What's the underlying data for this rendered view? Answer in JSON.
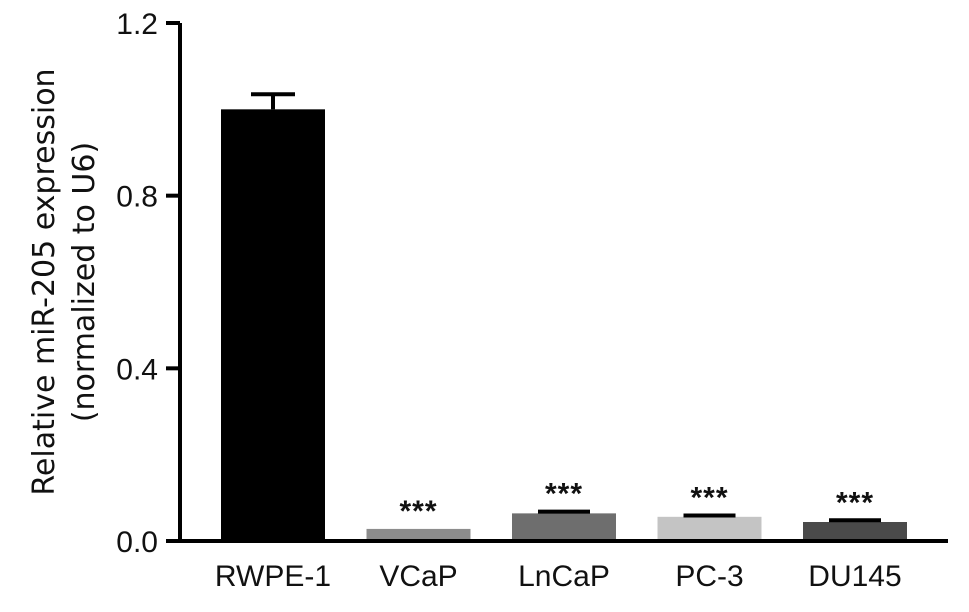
{
  "chart_data": {
    "type": "bar",
    "categories": [
      "RWPE-1",
      "VCaP",
      "LnCaP",
      "PC-3",
      "DU145"
    ],
    "values": [
      1.0,
      0.028,
      0.064,
      0.056,
      0.044
    ],
    "errors": [
      0.035,
      0.0,
      0.004,
      0.003,
      0.004
    ],
    "significance": [
      "",
      "***",
      "***",
      "***",
      "***"
    ],
    "colors": [
      "#000000",
      "#8c8c8c",
      "#6e6e6e",
      "#c4c4c4",
      "#4a4a4a"
    ],
    "ylabel_line1": "Relative miR-205 expression",
    "ylabel_line2": "(normalized to U6)",
    "xlabel": "",
    "title": "",
    "ylim": [
      0,
      1.2
    ],
    "yticks": [
      "0.0",
      "0.4",
      "0.8",
      "1.2"
    ],
    "grid": false,
    "legend": "none"
  }
}
